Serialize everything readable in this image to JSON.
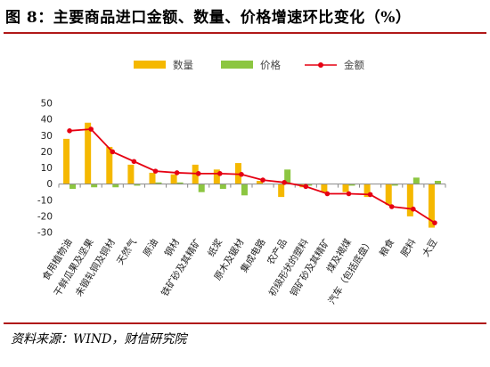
{
  "title": "图 8：主要商品进口金额、数量、价格增速环比变化（%）",
  "source": "资料来源：WIND，财信研究院",
  "colors": {
    "quantity": "#f5b800",
    "price": "#8cc641",
    "amount": "#e60012",
    "axis": "#888888",
    "rule": "#b01818"
  },
  "chart_data": {
    "type": "bar",
    "title": "",
    "xlabel": "",
    "ylabel": "",
    "ylim": [
      -30,
      50
    ],
    "yticks": [
      50,
      40,
      30,
      20,
      10,
      0,
      -10,
      -20,
      -30
    ],
    "grid": false,
    "legend": "top-center",
    "categories": [
      "食用植物油",
      "干鲜瓜果及坚果",
      "未锻轧铜及铜材",
      "天然气",
      "原油",
      "钢材",
      "铁矿砂及其精矿",
      "纸浆",
      "原木及锯材",
      "集成电路",
      "农产品",
      "初级形状的塑料",
      "铜矿砂及其精矿",
      "煤及褐煤",
      "汽车（包括底盘）",
      "粮食",
      "肥料",
      "大豆"
    ],
    "series": [
      {
        "name": "数量",
        "kind": "bar",
        "values": [
          28,
          38,
          23,
          12,
          7,
          6,
          12,
          9,
          13,
          2,
          -8,
          -2,
          -5,
          -5,
          -8,
          -13,
          -20,
          -27
        ]
      },
      {
        "name": "价格",
        "kind": "bar",
        "values": [
          -3,
          -2,
          -2,
          -1,
          1,
          1,
          -5,
          -3,
          -7,
          0,
          9,
          -1,
          0,
          -1,
          0,
          -1,
          4,
          2
        ]
      },
      {
        "name": "金额",
        "kind": "line",
        "values": [
          33,
          34,
          20,
          14,
          8,
          7,
          6.5,
          6.5,
          6,
          2.5,
          1,
          -1.5,
          -6,
          -6,
          -6.5,
          -14,
          -15.5,
          -24
        ]
      }
    ]
  }
}
